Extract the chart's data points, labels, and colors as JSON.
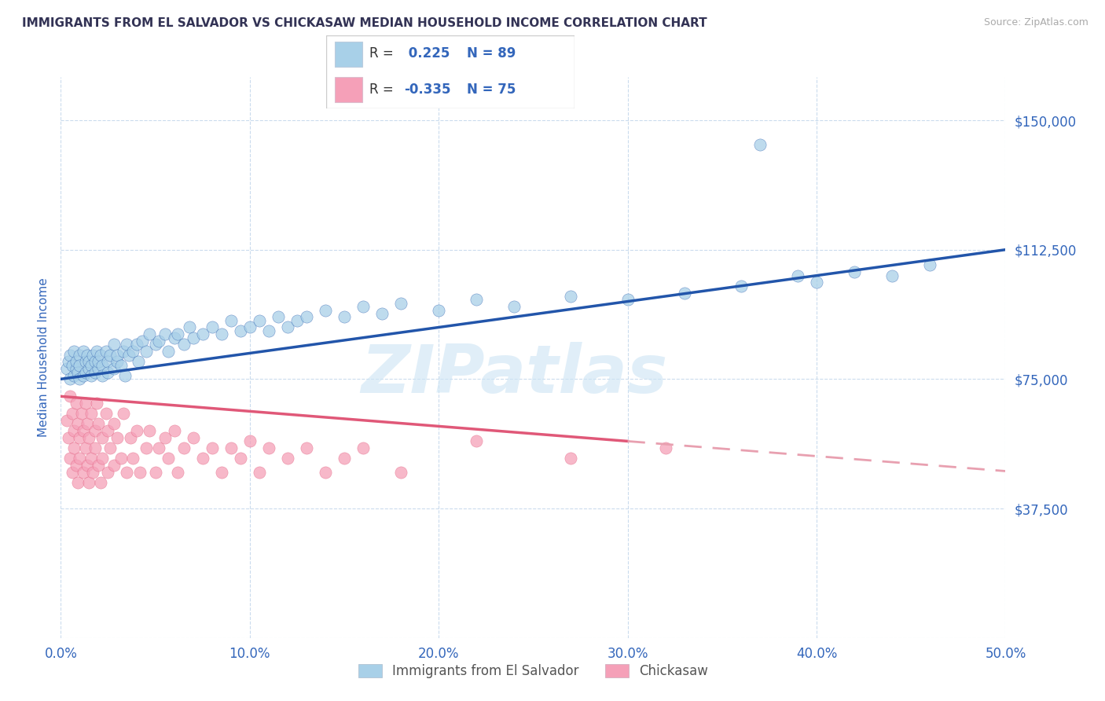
{
  "title": "IMMIGRANTS FROM EL SALVADOR VS CHICKASAW MEDIAN HOUSEHOLD INCOME CORRELATION CHART",
  "source": "Source: ZipAtlas.com",
  "ylabel": "Median Household Income",
  "xlim": [
    0.0,
    0.5
  ],
  "ylim": [
    0,
    162500
  ],
  "yticks": [
    0,
    37500,
    75000,
    112500,
    150000
  ],
  "ytick_labels": [
    "",
    "$37,500",
    "$75,000",
    "$112,500",
    "$150,000"
  ],
  "xtick_labels": [
    "0.0%",
    "10.0%",
    "20.0%",
    "30.0%",
    "40.0%",
    "50.0%"
  ],
  "xticks": [
    0.0,
    0.1,
    0.2,
    0.3,
    0.4,
    0.5
  ],
  "r_blue": 0.225,
  "n_blue": 89,
  "r_pink": -0.335,
  "n_pink": 75,
  "blue_dot_color": "#a8d0e8",
  "pink_dot_color": "#f5a0b8",
  "blue_line_color": "#2255aa",
  "pink_line_color": "#e05878",
  "pink_dash_color": "#e8a0b0",
  "title_color": "#333355",
  "axis_label_color": "#3366bb",
  "tick_label_color": "#3366bb",
  "watermark": "ZIPatlas",
  "legend_label_blue": "Immigrants from El Salvador",
  "legend_label_pink": "Chickasaw",
  "blue_trend_y0": 75000,
  "blue_trend_y1": 112500,
  "pink_trend_y0": 70000,
  "pink_trend_y1_solid": 57000,
  "pink_trend_x_solid": 0.3,
  "pink_trend_y1_dash": 37000,
  "blue_x": [
    0.003,
    0.004,
    0.005,
    0.005,
    0.006,
    0.007,
    0.007,
    0.008,
    0.008,
    0.009,
    0.01,
    0.01,
    0.01,
    0.012,
    0.012,
    0.013,
    0.013,
    0.014,
    0.015,
    0.015,
    0.016,
    0.016,
    0.017,
    0.018,
    0.018,
    0.019,
    0.02,
    0.02,
    0.021,
    0.022,
    0.022,
    0.024,
    0.025,
    0.025,
    0.026,
    0.028,
    0.028,
    0.03,
    0.03,
    0.032,
    0.033,
    0.034,
    0.035,
    0.036,
    0.038,
    0.04,
    0.041,
    0.043,
    0.045,
    0.047,
    0.05,
    0.052,
    0.055,
    0.057,
    0.06,
    0.062,
    0.065,
    0.068,
    0.07,
    0.075,
    0.08,
    0.085,
    0.09,
    0.095,
    0.1,
    0.105,
    0.11,
    0.115,
    0.12,
    0.125,
    0.13,
    0.14,
    0.15,
    0.16,
    0.17,
    0.18,
    0.2,
    0.22,
    0.24,
    0.27,
    0.3,
    0.33,
    0.36,
    0.39,
    0.4,
    0.42,
    0.44,
    0.46,
    0.37
  ],
  "blue_y": [
    78000,
    80000,
    75000,
    82000,
    79000,
    76000,
    83000,
    78000,
    80000,
    77000,
    75000,
    82000,
    79000,
    76000,
    83000,
    80000,
    77000,
    82000,
    78000,
    80000,
    79000,
    76000,
    82000,
    80000,
    77000,
    83000,
    78000,
    80000,
    82000,
    79000,
    76000,
    83000,
    80000,
    77000,
    82000,
    78000,
    85000,
    80000,
    82000,
    79000,
    83000,
    76000,
    85000,
    82000,
    83000,
    85000,
    80000,
    86000,
    83000,
    88000,
    85000,
    86000,
    88000,
    83000,
    87000,
    88000,
    85000,
    90000,
    87000,
    88000,
    90000,
    88000,
    92000,
    89000,
    90000,
    92000,
    89000,
    93000,
    90000,
    92000,
    93000,
    95000,
    93000,
    96000,
    94000,
    97000,
    95000,
    98000,
    96000,
    99000,
    98000,
    100000,
    102000,
    105000,
    103000,
    106000,
    105000,
    108000,
    143000
  ],
  "pink_x": [
    0.003,
    0.004,
    0.005,
    0.005,
    0.006,
    0.006,
    0.007,
    0.007,
    0.008,
    0.008,
    0.009,
    0.009,
    0.01,
    0.01,
    0.011,
    0.012,
    0.012,
    0.013,
    0.013,
    0.014,
    0.014,
    0.015,
    0.015,
    0.016,
    0.016,
    0.017,
    0.018,
    0.018,
    0.019,
    0.02,
    0.02,
    0.021,
    0.022,
    0.022,
    0.024,
    0.025,
    0.025,
    0.026,
    0.028,
    0.028,
    0.03,
    0.032,
    0.033,
    0.035,
    0.037,
    0.038,
    0.04,
    0.042,
    0.045,
    0.047,
    0.05,
    0.052,
    0.055,
    0.057,
    0.06,
    0.062,
    0.065,
    0.07,
    0.075,
    0.08,
    0.085,
    0.09,
    0.095,
    0.1,
    0.105,
    0.11,
    0.12,
    0.13,
    0.14,
    0.15,
    0.16,
    0.18,
    0.22,
    0.27,
    0.32
  ],
  "pink_y": [
    63000,
    58000,
    70000,
    52000,
    65000,
    48000,
    60000,
    55000,
    68000,
    50000,
    62000,
    45000,
    58000,
    52000,
    65000,
    48000,
    60000,
    55000,
    68000,
    50000,
    62000,
    45000,
    58000,
    52000,
    65000,
    48000,
    60000,
    55000,
    68000,
    50000,
    62000,
    45000,
    58000,
    52000,
    65000,
    48000,
    60000,
    55000,
    62000,
    50000,
    58000,
    52000,
    65000,
    48000,
    58000,
    52000,
    60000,
    48000,
    55000,
    60000,
    48000,
    55000,
    58000,
    52000,
    60000,
    48000,
    55000,
    58000,
    52000,
    55000,
    48000,
    55000,
    52000,
    57000,
    48000,
    55000,
    52000,
    55000,
    48000,
    52000,
    55000,
    48000,
    57000,
    52000,
    55000
  ]
}
